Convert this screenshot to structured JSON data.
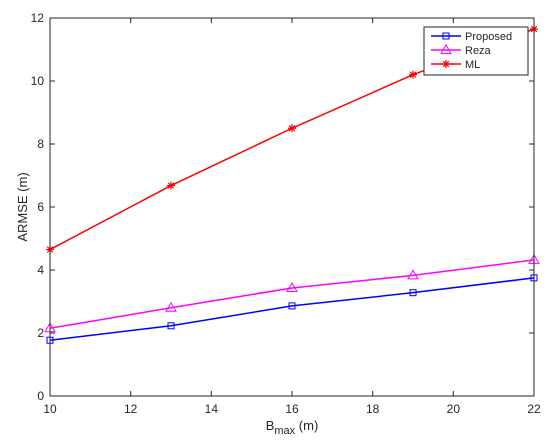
{
  "chart_data": {
    "type": "line",
    "xlabel": "B",
    "xlabel_subscript": "max",
    "xlabel_unit": " (m)",
    "ylabel": "ARMSE (m)",
    "xlim": [
      10,
      22
    ],
    "ylim": [
      0,
      12
    ],
    "x_ticks": [
      10,
      12,
      14,
      16,
      18,
      20,
      22
    ],
    "y_ticks": [
      0,
      2,
      4,
      6,
      8,
      10,
      12
    ],
    "x": [
      10,
      13,
      16,
      19,
      22
    ],
    "grid": false,
    "legend_position": "top-right",
    "series": [
      {
        "name": "Proposed",
        "color": "#0000ff",
        "marker": "square",
        "values": [
          1.77,
          2.23,
          2.86,
          3.28,
          3.75
        ]
      },
      {
        "name": "Reza",
        "color": "#ff00ff",
        "marker": "triangle",
        "values": [
          2.15,
          2.8,
          3.43,
          3.83,
          4.32
        ]
      },
      {
        "name": "ML",
        "color": "#ff0000",
        "marker": "star",
        "values": [
          4.65,
          6.68,
          8.5,
          10.2,
          11.65
        ]
      }
    ]
  }
}
